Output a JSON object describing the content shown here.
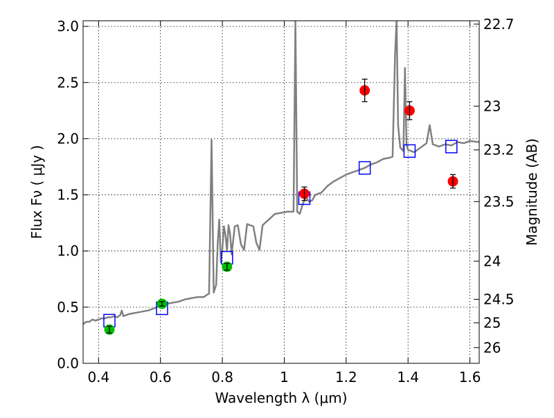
{
  "chart_data": {
    "type": "scatter",
    "xlabel": "Wavelength  λ (μm)",
    "ylabel": "Flux  Fν  ( μJy )",
    "y2label": "Magnitude (AB)",
    "xlim": [
      0.35,
      1.63
    ],
    "ylim": [
      0.0,
      3.05
    ],
    "xticks": [
      0.4,
      0.6,
      0.8,
      1.0,
      1.2,
      1.4,
      1.6
    ],
    "xtick_labels": [
      "0.4",
      "0.6",
      "0.8",
      "1",
      "1.2",
      "1.4",
      "1.6"
    ],
    "yticks": [
      0.0,
      0.5,
      1.0,
      1.5,
      2.0,
      2.5,
      3.0
    ],
    "ytick_labels": [
      "0.0",
      "0.5",
      "1.0",
      "1.5",
      "2.0",
      "2.5",
      "3.0"
    ],
    "y2ticks": [
      {
        "label": "22.7",
        "flux": 3.02
      },
      {
        "label": "23",
        "flux": 2.29
      },
      {
        "label": "23.2",
        "flux": 1.9
      },
      {
        "label": "23.5",
        "flux": 1.44
      },
      {
        "label": "24",
        "flux": 0.91
      },
      {
        "label": "24.5",
        "flux": 0.57
      },
      {
        "label": "25",
        "flux": 0.36
      },
      {
        "label": "26",
        "flux": 0.14
      }
    ],
    "grid": true,
    "series": [
      {
        "kind": "line",
        "color": "#808080",
        "points": [
          [
            0.35,
            0.35
          ],
          [
            0.36,
            0.37
          ],
          [
            0.37,
            0.37
          ],
          [
            0.38,
            0.39
          ],
          [
            0.39,
            0.38
          ],
          [
            0.4,
            0.39
          ],
          [
            0.41,
            0.4
          ],
          [
            0.42,
            0.4
          ],
          [
            0.43,
            0.41
          ],
          [
            0.44,
            0.41
          ],
          [
            0.45,
            0.42
          ],
          [
            0.46,
            0.41
          ],
          [
            0.47,
            0.43
          ],
          [
            0.475,
            0.47
          ],
          [
            0.48,
            0.42
          ],
          [
            0.5,
            0.44
          ],
          [
            0.52,
            0.45
          ],
          [
            0.54,
            0.46
          ],
          [
            0.56,
            0.47
          ],
          [
            0.58,
            0.49
          ],
          [
            0.6,
            0.51
          ],
          [
            0.62,
            0.53
          ],
          [
            0.64,
            0.54
          ],
          [
            0.66,
            0.55
          ],
          [
            0.68,
            0.57
          ],
          [
            0.7,
            0.58
          ],
          [
            0.72,
            0.59
          ],
          [
            0.74,
            0.59
          ],
          [
            0.75,
            0.61
          ],
          [
            0.757,
            0.62
          ],
          [
            0.765,
            1.99
          ],
          [
            0.772,
            0.63
          ],
          [
            0.78,
            0.7
          ],
          [
            0.785,
            1.07
          ],
          [
            0.79,
            1.28
          ],
          [
            0.795,
            0.9
          ],
          [
            0.8,
            1.02
          ],
          [
            0.805,
            1.22
          ],
          [
            0.81,
            1.14
          ],
          [
            0.815,
            1.0
          ],
          [
            0.82,
            1.23
          ],
          [
            0.825,
            1.15
          ],
          [
            0.83,
            0.97
          ],
          [
            0.84,
            1.22
          ],
          [
            0.85,
            1.23
          ],
          [
            0.86,
            1.06
          ],
          [
            0.87,
            1.01
          ],
          [
            0.88,
            1.24
          ],
          [
            0.89,
            1.23
          ],
          [
            0.9,
            1.22
          ],
          [
            0.91,
            1.07
          ],
          [
            0.92,
            1.01
          ],
          [
            0.93,
            1.23
          ],
          [
            0.95,
            1.28
          ],
          [
            0.97,
            1.33
          ],
          [
            0.99,
            1.34
          ],
          [
            1.01,
            1.35
          ],
          [
            1.02,
            1.35
          ],
          [
            1.03,
            1.35
          ],
          [
            1.036,
            3.05
          ],
          [
            1.042,
            1.35
          ],
          [
            1.05,
            1.33
          ],
          [
            1.06,
            1.42
          ],
          [
            1.07,
            1.48
          ],
          [
            1.08,
            1.44
          ],
          [
            1.09,
            1.45
          ],
          [
            1.1,
            1.5
          ],
          [
            1.12,
            1.52
          ],
          [
            1.14,
            1.58
          ],
          [
            1.16,
            1.62
          ],
          [
            1.18,
            1.65
          ],
          [
            1.2,
            1.68
          ],
          [
            1.22,
            1.7
          ],
          [
            1.24,
            1.72
          ],
          [
            1.26,
            1.74
          ],
          [
            1.28,
            1.77
          ],
          [
            1.3,
            1.79
          ],
          [
            1.32,
            1.82
          ],
          [
            1.34,
            1.83
          ],
          [
            1.35,
            1.84
          ],
          [
            1.358,
            2.75
          ],
          [
            1.363,
            3.05
          ],
          [
            1.368,
            2.12
          ],
          [
            1.375,
            1.92
          ],
          [
            1.385,
            1.89
          ],
          [
            1.39,
            2.63
          ],
          [
            1.395,
            1.95
          ],
          [
            1.4,
            1.9
          ],
          [
            1.42,
            1.88
          ],
          [
            1.44,
            1.92
          ],
          [
            1.46,
            1.96
          ],
          [
            1.47,
            2.12
          ],
          [
            1.48,
            1.95
          ],
          [
            1.5,
            1.93
          ],
          [
            1.52,
            1.95
          ],
          [
            1.54,
            1.94
          ],
          [
            1.56,
            1.97
          ],
          [
            1.58,
            1.96
          ],
          [
            1.6,
            1.98
          ],
          [
            1.63,
            1.97
          ]
        ]
      },
      {
        "kind": "open-square",
        "color": "#0000ff",
        "points": [
          [
            0.435,
            0.38
          ],
          [
            0.605,
            0.49
          ],
          [
            0.815,
            0.94
          ],
          [
            1.065,
            1.47
          ],
          [
            1.26,
            1.74
          ],
          [
            1.405,
            1.89
          ],
          [
            1.54,
            1.93
          ]
        ]
      },
      {
        "kind": "points-errorbar",
        "color": "#00c000",
        "points": [
          [
            0.435,
            0.3,
            0.03
          ],
          [
            0.605,
            0.53,
            0.02
          ],
          [
            0.815,
            0.86,
            0.03
          ]
        ]
      },
      {
        "kind": "points-errorbar",
        "color": "#ff0000",
        "points": [
          [
            1.065,
            1.51,
            0.06
          ],
          [
            1.26,
            2.43,
            0.1
          ],
          [
            1.405,
            2.25,
            0.08
          ],
          [
            1.545,
            1.62,
            0.06
          ]
        ]
      }
    ]
  }
}
